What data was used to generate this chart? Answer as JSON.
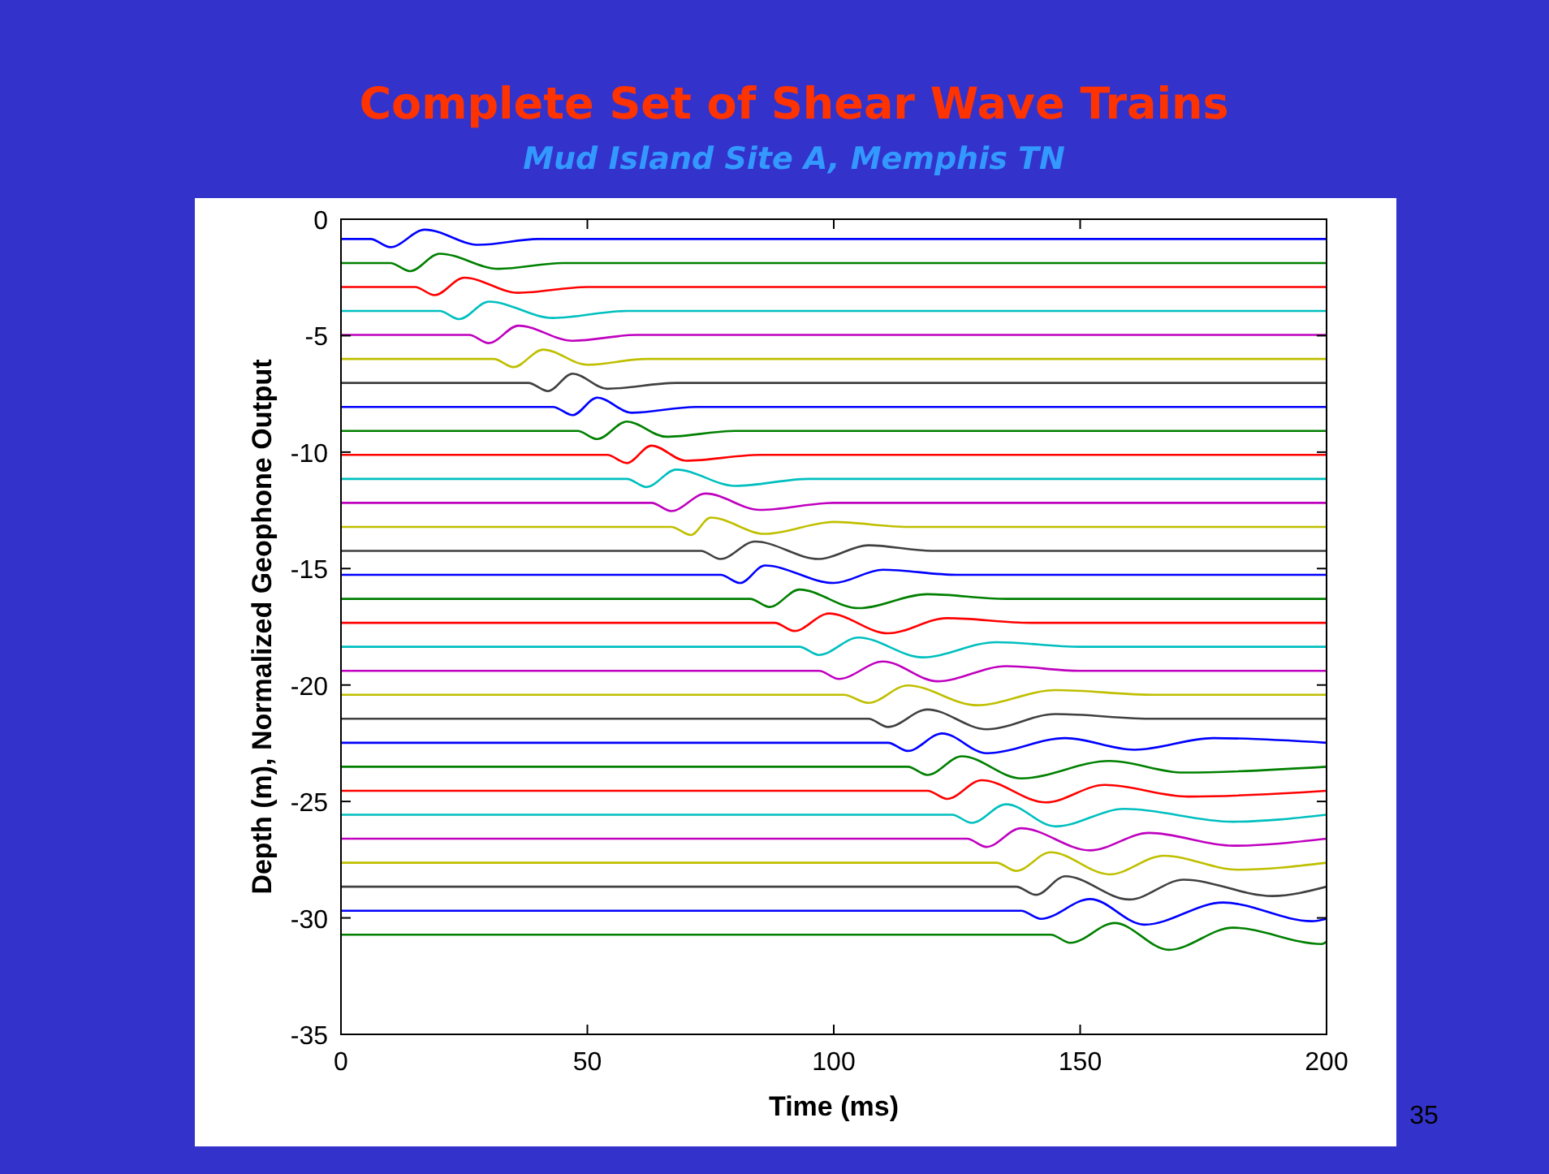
{
  "chart_data": {
    "type": "line",
    "title": "Complete Set of Shear Wave Trains",
    "subtitle": "Mud Island Site A, Memphis TN",
    "xlabel": "Time (ms)",
    "ylabel": "Depth (m), Normalized Geophone Output",
    "annotations": [
      "35"
    ],
    "xlim": [
      0,
      200
    ],
    "xticks": [
      0,
      50,
      100,
      150,
      200
    ],
    "ylim": [
      -35,
      0
    ],
    "yticks": [
      -35,
      -30,
      -25,
      -20,
      -15,
      -10,
      -5,
      0
    ],
    "series": [
      {
        "color": "#0000ff",
        "x": [
          0,
          6,
          10,
          17,
          28,
          40,
          200
        ],
        "values": [
          -0.85,
          -0.85,
          -1.2,
          -0.45,
          -1.1,
          -0.85,
          -0.85
        ]
      },
      {
        "color": "#008000",
        "x": [
          0,
          10,
          14,
          20,
          32,
          45,
          200
        ],
        "values": [
          -1.88,
          -1.88,
          -2.23,
          -1.48,
          -2.13,
          -1.88,
          -1.88
        ]
      },
      {
        "color": "#ff0000",
        "x": [
          0,
          15,
          19,
          25,
          36,
          50,
          200
        ],
        "values": [
          -2.91,
          -2.91,
          -3.26,
          -2.51,
          -3.16,
          -2.91,
          -2.91
        ]
      },
      {
        "color": "#00bfbf",
        "x": [
          0,
          20,
          24,
          30,
          43,
          58,
          200
        ],
        "values": [
          -3.94,
          -3.94,
          -4.29,
          -3.54,
          -4.24,
          -3.94,
          -3.94
        ]
      },
      {
        "color": "#bf00bf",
        "x": [
          0,
          26,
          30,
          36,
          47,
          60,
          200
        ],
        "values": [
          -4.97,
          -4.97,
          -5.32,
          -4.57,
          -5.22,
          -4.97,
          -4.97
        ]
      },
      {
        "color": "#bfbf00",
        "x": [
          0,
          31,
          35,
          41,
          50,
          62,
          200
        ],
        "values": [
          -6,
          -6,
          -6.35,
          -5.6,
          -6.25,
          -6,
          -6
        ]
      },
      {
        "color": "#404040",
        "x": [
          0,
          38,
          42,
          47,
          54,
          68,
          200
        ],
        "values": [
          -7.03,
          -7.03,
          -7.38,
          -6.63,
          -7.28,
          -7.03,
          -7.03
        ]
      },
      {
        "color": "#0000ff",
        "x": [
          0,
          43,
          47,
          52,
          59,
          72,
          200
        ],
        "values": [
          -8.06,
          -8.06,
          -8.41,
          -7.66,
          -8.31,
          -8.06,
          -8.06
        ]
      },
      {
        "color": "#008000",
        "x": [
          0,
          48,
          52,
          58,
          66,
          80,
          200
        ],
        "values": [
          -9.09,
          -9.09,
          -9.44,
          -8.69,
          -9.34,
          -9.09,
          -9.09
        ]
      },
      {
        "color": "#ff0000",
        "x": [
          0,
          54,
          58,
          63,
          70,
          85,
          200
        ],
        "values": [
          -10.12,
          -10.12,
          -10.47,
          -9.72,
          -10.37,
          -10.12,
          -10.12
        ]
      },
      {
        "color": "#00bfbf",
        "x": [
          0,
          58,
          62,
          68,
          80,
          95,
          200
        ],
        "values": [
          -11.15,
          -11.15,
          -11.5,
          -10.75,
          -11.45,
          -11.15,
          -11.15
        ]
      },
      {
        "color": "#bf00bf",
        "x": [
          0,
          63,
          67,
          74,
          85,
          100,
          200
        ],
        "values": [
          -12.18,
          -12.18,
          -12.53,
          -11.78,
          -12.48,
          -12.18,
          -12.18
        ]
      },
      {
        "color": "#bfbf00",
        "x": [
          0,
          67,
          71,
          75,
          86,
          100,
          115,
          200
        ],
        "values": [
          -13.21,
          -13.21,
          -13.56,
          -12.81,
          -13.51,
          -13.0,
          -13.21,
          -13.21
        ]
      },
      {
        "color": "#404040",
        "x": [
          0,
          73,
          77,
          84,
          97,
          107,
          120,
          200
        ],
        "values": [
          -14.24,
          -14.24,
          -14.59,
          -13.84,
          -14.59,
          -14.0,
          -14.24,
          -14.24
        ]
      },
      {
        "color": "#0000ff",
        "x": [
          0,
          77,
          81,
          86,
          100,
          110,
          125,
          200
        ],
        "values": [
          -15.27,
          -15.27,
          -15.62,
          -14.87,
          -15.62,
          -15.05,
          -15.27,
          -15.27
        ]
      },
      {
        "color": "#008000",
        "x": [
          0,
          83,
          87,
          93,
          105,
          119,
          135,
          200
        ],
        "values": [
          -16.3,
          -16.3,
          -16.65,
          -15.9,
          -16.7,
          -16.1,
          -16.3,
          -16.3
        ]
      },
      {
        "color": "#ff0000",
        "x": [
          0,
          88,
          92,
          99,
          111,
          123,
          140,
          200
        ],
        "values": [
          -17.33,
          -17.33,
          -17.68,
          -16.93,
          -17.78,
          -17.13,
          -17.33,
          -17.33
        ]
      },
      {
        "color": "#00bfbf",
        "x": [
          0,
          93,
          97,
          105,
          118,
          133,
          150,
          200
        ],
        "values": [
          -18.36,
          -18.36,
          -18.71,
          -17.96,
          -18.81,
          -18.16,
          -18.36,
          -18.36
        ]
      },
      {
        "color": "#bf00bf",
        "x": [
          0,
          97,
          101,
          110,
          121,
          135,
          150,
          200
        ],
        "values": [
          -19.39,
          -19.39,
          -19.74,
          -18.99,
          -19.84,
          -19.19,
          -19.39,
          -19.39
        ]
      },
      {
        "color": "#bfbf00",
        "x": [
          0,
          102,
          107,
          115,
          129,
          145,
          165,
          200
        ],
        "values": [
          -20.42,
          -20.42,
          -20.77,
          -20.02,
          -20.87,
          -20.22,
          -20.42,
          -20.42
        ]
      },
      {
        "color": "#404040",
        "x": [
          0,
          107,
          111,
          119,
          131,
          145,
          165,
          200
        ],
        "values": [
          -21.45,
          -21.45,
          -21.8,
          -21.05,
          -21.9,
          -21.25,
          -21.45,
          -21.45
        ]
      },
      {
        "color": "#0000ff",
        "x": [
          0,
          111,
          115,
          122,
          131,
          147,
          161,
          177,
          200
        ],
        "values": [
          -22.48,
          -22.48,
          -22.83,
          -22.08,
          -22.93,
          -22.28,
          -22.78,
          -22.28,
          -22.48
        ]
      },
      {
        "color": "#008000",
        "x": [
          0,
          115,
          119,
          126,
          138,
          156,
          171,
          200
        ],
        "values": [
          -23.51,
          -23.51,
          -23.86,
          -23.06,
          -24.01,
          -23.26,
          -23.76,
          -23.51
        ]
      },
      {
        "color": "#ff0000",
        "x": [
          0,
          119,
          123,
          130,
          143,
          155,
          172,
          200
        ],
        "values": [
          -24.54,
          -24.54,
          -24.89,
          -24.09,
          -25.04,
          -24.29,
          -24.79,
          -24.54
        ]
      },
      {
        "color": "#00bfbf",
        "x": [
          0,
          124,
          128,
          135,
          145,
          159,
          181,
          200
        ],
        "values": [
          -25.57,
          -25.57,
          -25.92,
          -25.12,
          -26.07,
          -25.32,
          -25.87,
          -25.57
        ]
      },
      {
        "color": "#bf00bf",
        "x": [
          0,
          127,
          131,
          138,
          152,
          164,
          181,
          200
        ],
        "values": [
          -26.6,
          -26.6,
          -26.95,
          -26.15,
          -27.1,
          -26.35,
          -26.9,
          -26.6
        ]
      },
      {
        "color": "#bfbf00",
        "x": [
          0,
          133,
          137,
          144,
          156,
          167,
          182,
          200
        ],
        "values": [
          -27.63,
          -27.63,
          -27.98,
          -27.18,
          -28.13,
          -27.33,
          -27.93,
          -27.63
        ]
      },
      {
        "color": "#404040",
        "x": [
          0,
          137,
          141,
          147,
          160,
          171,
          189,
          200
        ],
        "values": [
          -28.66,
          -28.66,
          -29.01,
          -28.21,
          -29.21,
          -28.36,
          -29.06,
          -28.66
        ]
      },
      {
        "color": "#0000ff",
        "x": [
          0,
          138,
          142,
          152,
          163,
          179,
          197,
          200
        ],
        "values": [
          -29.69,
          -29.69,
          -30.04,
          -29.19,
          -30.29,
          -29.34,
          -30.14,
          -30.04
        ]
      },
      {
        "color": "#008000",
        "x": [
          0,
          144,
          148,
          157,
          168,
          181,
          199,
          200
        ],
        "values": [
          -30.72,
          -30.72,
          -31.07,
          -30.22,
          -31.37,
          -30.42,
          -31.12,
          -31.02
        ]
      }
    ]
  }
}
